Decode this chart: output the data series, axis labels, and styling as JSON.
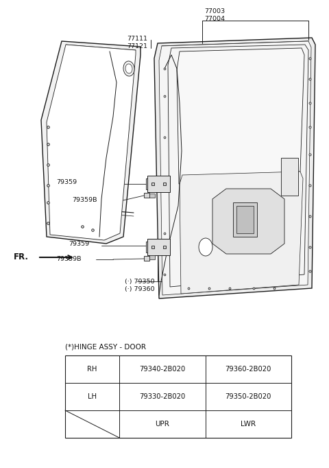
{
  "background_color": "#ffffff",
  "fig_width": 4.8,
  "fig_height": 6.82,
  "table_title": "(*)HINGE ASSY - DOOR",
  "table_headers": [
    "",
    "UPR",
    "LWR"
  ],
  "table_rows": [
    [
      "LH",
      "79330-2B020",
      "79350-2B020"
    ],
    [
      "RH",
      "79340-2B020",
      "79360-2B020"
    ]
  ]
}
